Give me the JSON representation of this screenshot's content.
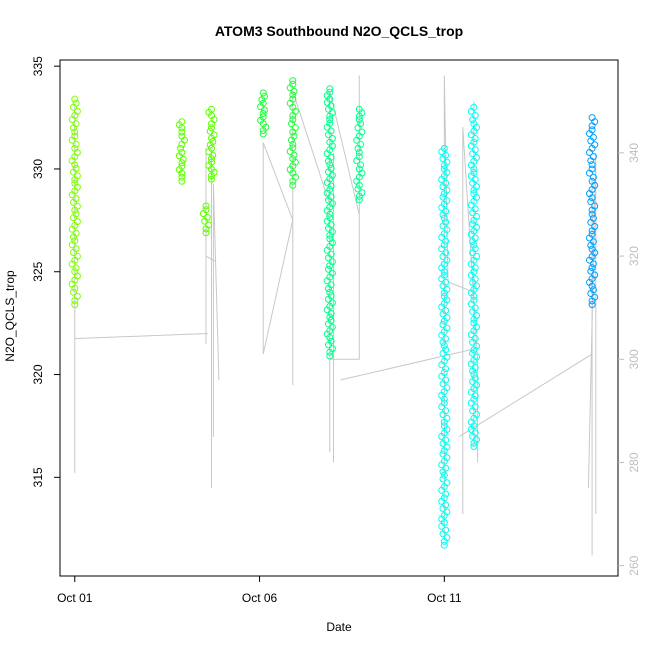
{
  "chart_data": {
    "type": "scatter",
    "title": "ATOM3 Southbound N2O_QCLS_trop",
    "xlabel": "Date",
    "ylabel": "N2O_QCLS_trop",
    "x_ticks": [
      "Oct 01",
      "Oct 06",
      "Oct 11"
    ],
    "x_tick_days": [
      1,
      6,
      11
    ],
    "xlim_days": [
      0.6,
      15.7
    ],
    "ylim": [
      310.2,
      335.3
    ],
    "y_ticks": [
      315,
      320,
      325,
      330,
      335
    ],
    "y2_ticks": [
      260,
      280,
      300,
      320,
      340
    ],
    "y2lim": [
      258,
      358
    ],
    "grid": false,
    "series": [
      {
        "color": "#7FFF00",
        "points": [
          {
            "day": 1.0,
            "y": [
              323.4,
              324.2,
              325.0,
              326.5,
              328.0,
              329.3,
              330.2,
              331.0,
              331.8,
              332.6,
              333.4
            ]
          }
        ]
      },
      {
        "color": "#5CFF00",
        "points": [
          {
            "day": 3.9,
            "y": [
              329.4,
              329.8,
              330.3,
              330.8,
              331.2,
              331.6,
              332.0,
              332.3
            ]
          },
          {
            "day": 4.7,
            "y": [
              329.5,
              330.0,
              330.5,
              331.0,
              331.5,
              332.0,
              332.6,
              332.9
            ]
          },
          {
            "day": 4.55,
            "y": [
              326.9,
              328.2
            ]
          }
        ]
      },
      {
        "color": "#1FFF3A",
        "points": [
          {
            "day": 6.1,
            "y": [
              331.7,
              332.2,
              332.7,
              333.2,
              333.7
            ]
          },
          {
            "day": 6.9,
            "y": [
              329.2,
              329.8,
              330.5,
              331.2,
              331.8,
              332.4,
              333.0,
              333.6,
              334.3
            ]
          }
        ]
      },
      {
        "color": "#00FF8C",
        "points": [
          {
            "day": 7.9,
            "y": [
              320.9,
              321.8,
              322.8,
              324.0,
              325.3,
              326.6,
              327.8,
              329.0,
              330.2,
              331.3,
              332.4,
              333.4,
              333.9
            ]
          },
          {
            "day": 8.7,
            "y": [
              328.5,
              329.2,
              330.0,
              330.8,
              331.6,
              332.4,
              332.9
            ]
          }
        ]
      },
      {
        "color": "#00FFF2",
        "points": [
          {
            "day": 11.0,
            "y": [
              311.7,
              312.8,
              314.0,
              315.1,
              316.3,
              317.5,
              318.8,
              320.1,
              321.4,
              322.6,
              323.8,
              325.0,
              326.3,
              327.6,
              328.8,
              330.0,
              331.0
            ]
          },
          {
            "day": 11.8,
            "y": [
              316.5,
              317.5,
              318.8,
              320.0,
              321.2,
              322.5,
              323.8,
              325.0,
              326.3,
              327.5,
              328.8,
              330.0,
              331.3,
              332.2,
              333.0
            ]
          }
        ]
      },
      {
        "color": "#00A0FF",
        "points": [
          {
            "day": 15.0,
            "y": [
              323.4,
              324.3,
              325.2,
              326.1,
              327.0,
              327.8,
              328.6,
              329.4,
              330.2,
              331.0,
              331.9,
              332.5
            ]
          }
        ]
      }
    ],
    "alt_profile_color": "#c8c8c8"
  }
}
